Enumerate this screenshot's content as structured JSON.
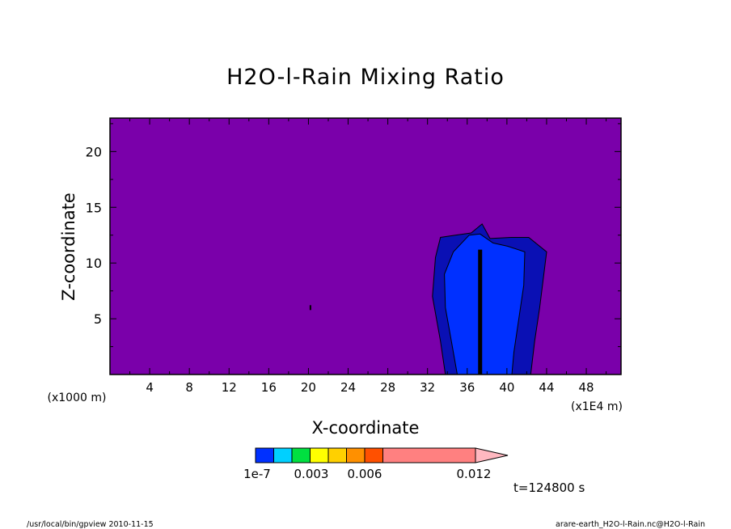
{
  "chart_data": {
    "type": "heatmap",
    "title": "H2O-l-Rain Mixing Ratio",
    "xlabel": "X-coordinate",
    "ylabel": "Z-coordinate",
    "x_unit_note": "(x1E4 m)",
    "y_unit_note": "(x1000 m)",
    "xlim": [
      0,
      51.5
    ],
    "ylim": [
      0,
      23
    ],
    "x_ticks": [
      4,
      8,
      12,
      16,
      20,
      24,
      28,
      32,
      36,
      40,
      44,
      48
    ],
    "y_ticks": [
      5,
      10,
      15,
      20
    ],
    "background_color": "#7a00aa",
    "colorbar": {
      "levels": [
        "1e-7",
        "0.0015",
        "0.003",
        "0.0045",
        "0.006",
        "0.0075",
        "0.009",
        "0.012"
      ],
      "tick_labels": [
        "1e-7",
        "0.003",
        "0.006",
        "0.012"
      ],
      "colors": [
        "#0030ff",
        "#00d0ff",
        "#00e040",
        "#ffff00",
        "#ffd000",
        "#ff9000",
        "#ff5000",
        "#ff2020",
        "#ff8080"
      ],
      "extend_color": "#ffb8c0"
    },
    "features": [
      {
        "name": "outer rain region",
        "level": "1e-7",
        "color": "#0a10b4",
        "outline": [
          [
            33.8,
            0
          ],
          [
            33.3,
            3
          ],
          [
            32.5,
            7
          ],
          [
            32.8,
            10.5
          ],
          [
            33.3,
            12.3
          ],
          [
            34.8,
            12.5
          ],
          [
            36.4,
            12.7
          ],
          [
            37.5,
            13.5
          ],
          [
            38.3,
            12.2
          ],
          [
            40.4,
            12.3
          ],
          [
            42.2,
            12.3
          ],
          [
            44,
            11
          ],
          [
            43.3,
            6
          ],
          [
            42.8,
            3
          ],
          [
            42.4,
            0
          ]
        ]
      },
      {
        "name": "inner rain region",
        "level": "0.0015",
        "color": "#0030ff",
        "outline": [
          [
            35,
            0
          ],
          [
            34.5,
            2.5
          ],
          [
            33.8,
            6
          ],
          [
            33.7,
            9
          ],
          [
            34.6,
            11
          ],
          [
            36.2,
            12.5
          ],
          [
            37.3,
            12.6
          ],
          [
            38.6,
            11.8
          ],
          [
            40.1,
            11.5
          ],
          [
            41.8,
            11
          ],
          [
            41.7,
            8
          ],
          [
            41.2,
            5
          ],
          [
            40.7,
            2
          ],
          [
            40.5,
            0
          ]
        ]
      },
      {
        "name": "central rain shaft",
        "level": "0.003",
        "color": "#000000",
        "x": 37.3,
        "z_top": 11.2
      },
      {
        "name": "isolated point",
        "level": "1e-7",
        "color": "#000000",
        "x": 20.2,
        "z": 6
      }
    ],
    "annotations": [
      "t=124800 s"
    ]
  },
  "footer": {
    "left": "/usr/local/bin/gpview   2010-11-15",
    "right": "arare-earth_H2O-l-Rain.nc@H2O-l-Rain"
  }
}
